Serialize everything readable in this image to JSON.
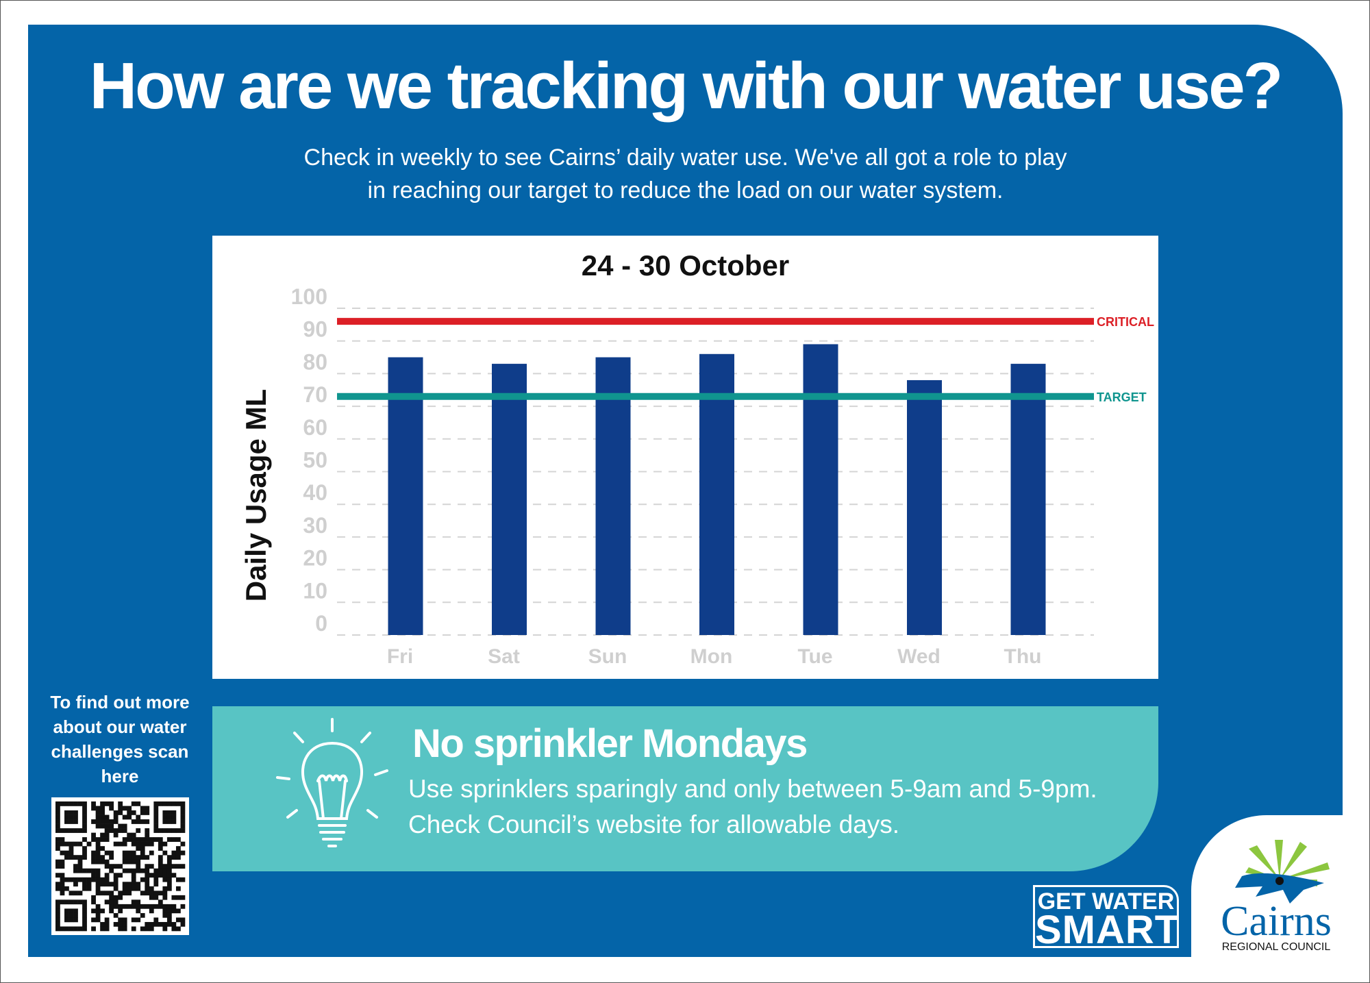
{
  "header": {
    "title": "How are we tracking with our water use?",
    "subtitle_line1": "Check in weekly to see Cairns’ daily water use. We've all got a role to play",
    "subtitle_line2": "in reaching our target to reduce the load on our water system."
  },
  "chart_data": {
    "type": "bar",
    "title": "24 - 30 October",
    "ylabel": "Daily Usage ML",
    "xlabel": "",
    "categories": [
      "Fri",
      "Sat",
      "Sun",
      "Mon",
      "Tue",
      "Wed",
      "Thu"
    ],
    "values": [
      85,
      83,
      85,
      86,
      89,
      78,
      83
    ],
    "ylim": [
      0,
      100
    ],
    "yticks": [
      "0",
      "10",
      "20",
      "30",
      "40",
      "50",
      "60",
      "70",
      "80",
      "90",
      "100"
    ],
    "grid": "dashed horizontal",
    "bar_color": "#0f3d8a",
    "reference_lines": [
      {
        "label": "CRITICAL",
        "value": 96,
        "color": "#dc1f26"
      },
      {
        "label": "TARGET",
        "value": 73,
        "color": "#10958f"
      }
    ]
  },
  "banner": {
    "icon": "lightbulb-icon",
    "heading": "No sprinkler Mondays",
    "line1": "Use sprinklers sparingly and only between 5-9am and 5-9pm.",
    "line2": "Check Council’s website for allowable days."
  },
  "qr_prompt": {
    "lines": [
      "To find out more",
      "about our water",
      "challenges scan",
      "here"
    ]
  },
  "logos": {
    "get_water_smart": {
      "line1": "GET WATER",
      "line2": "SMART"
    },
    "council": {
      "name": "Cairns",
      "subtitle": "REGIONAL COUNCIL"
    }
  },
  "colors": {
    "panel": "#0464a8",
    "banner": "#58c4c4",
    "accent_green": "#8cc63f"
  }
}
